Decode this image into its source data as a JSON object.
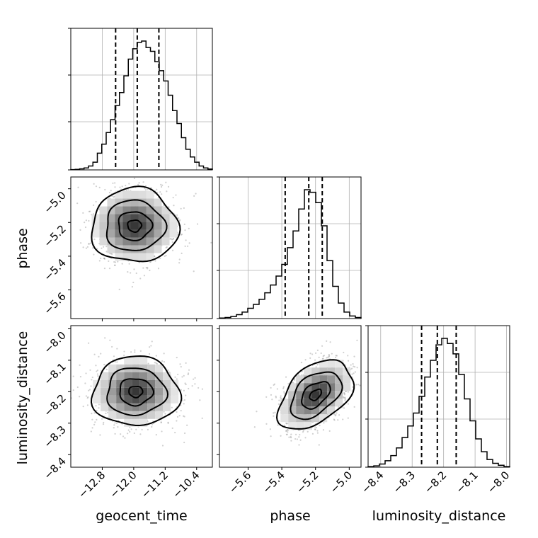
{
  "chart_data": {
    "type": "corner",
    "parameters": [
      {
        "name": "geocent_time",
        "label": "geocent_time",
        "range": [
          -13.6,
          -10.0
        ],
        "ticks": [
          -12.8,
          -12.0,
          -11.2,
          -10.4
        ],
        "tick_labels": [
          "−12.8",
          "−12.0",
          "−11.2",
          "−10.4"
        ],
        "mean": -11.9,
        "sd": 0.5,
        "quantiles": [
          -12.46,
          -11.91,
          -11.36
        ]
      },
      {
        "name": "phase",
        "label": "phase",
        "range": [
          -5.77,
          -4.93
        ],
        "ticks": [
          -5.6,
          -5.4,
          -5.2,
          -5.0
        ],
        "tick_labels": [
          "−5.6",
          "−5.4",
          "−5.2",
          "−5.0"
        ],
        "mean": -5.25,
        "sd": 0.1,
        "quantiles": [
          -5.38,
          -5.24,
          -5.16
        ]
      },
      {
        "name": "luminosity_distance",
        "label": "luminosity_distance",
        "range": [
          -8.44,
          -7.99
        ],
        "ticks": [
          -8.4,
          -8.3,
          -8.2,
          -8.1,
          -8.0
        ],
        "tick_labels": [
          "−8.4",
          "−8.3",
          "−8.2",
          "−8.1",
          "−8.0"
        ],
        "mean": -8.22,
        "sd": 0.05,
        "quantiles": [
          -8.27,
          -8.22,
          -8.16
        ]
      }
    ],
    "histograms": [
      [
        0.002,
        0.004,
        0.008,
        0.015,
        0.03,
        0.06,
        0.13,
        0.2,
        0.29,
        0.39,
        0.5,
        0.6,
        0.73,
        0.86,
        0.94,
        0.99,
        1.0,
        0.95,
        0.92,
        0.84,
        0.77,
        0.69,
        0.58,
        0.46,
        0.36,
        0.25,
        0.16,
        0.1,
        0.06,
        0.03,
        0.015,
        0.007
      ],
      [
        0.004,
        0.008,
        0.016,
        0.03,
        0.05,
        0.08,
        0.11,
        0.15,
        0.2,
        0.26,
        0.33,
        0.42,
        0.55,
        0.68,
        0.85,
        1.0,
        0.98,
        0.9,
        0.72,
        0.45,
        0.25,
        0.12,
        0.05,
        0.02,
        0.008
      ],
      [
        0.005,
        0.01,
        0.025,
        0.05,
        0.09,
        0.15,
        0.23,
        0.32,
        0.42,
        0.55,
        0.7,
        0.83,
        0.95,
        1.0,
        0.96,
        0.88,
        0.72,
        0.53,
        0.36,
        0.22,
        0.12,
        0.06,
        0.03,
        0.015,
        0.005
      ]
    ],
    "pairs": [
      {
        "x": 0,
        "y": 1,
        "density_peak": [
          -11.98,
          -5.22
        ],
        "contour_levels": 4
      },
      {
        "x": 0,
        "y": 2,
        "density_peak": [
          -11.95,
          -8.2
        ],
        "contour_levels": 4
      },
      {
        "x": 1,
        "y": 2,
        "density_peak": [
          -5.2,
          -8.21
        ],
        "contour_levels": 4,
        "correlation": 0.45
      }
    ],
    "grid": true,
    "quantile_style": "dashed"
  }
}
